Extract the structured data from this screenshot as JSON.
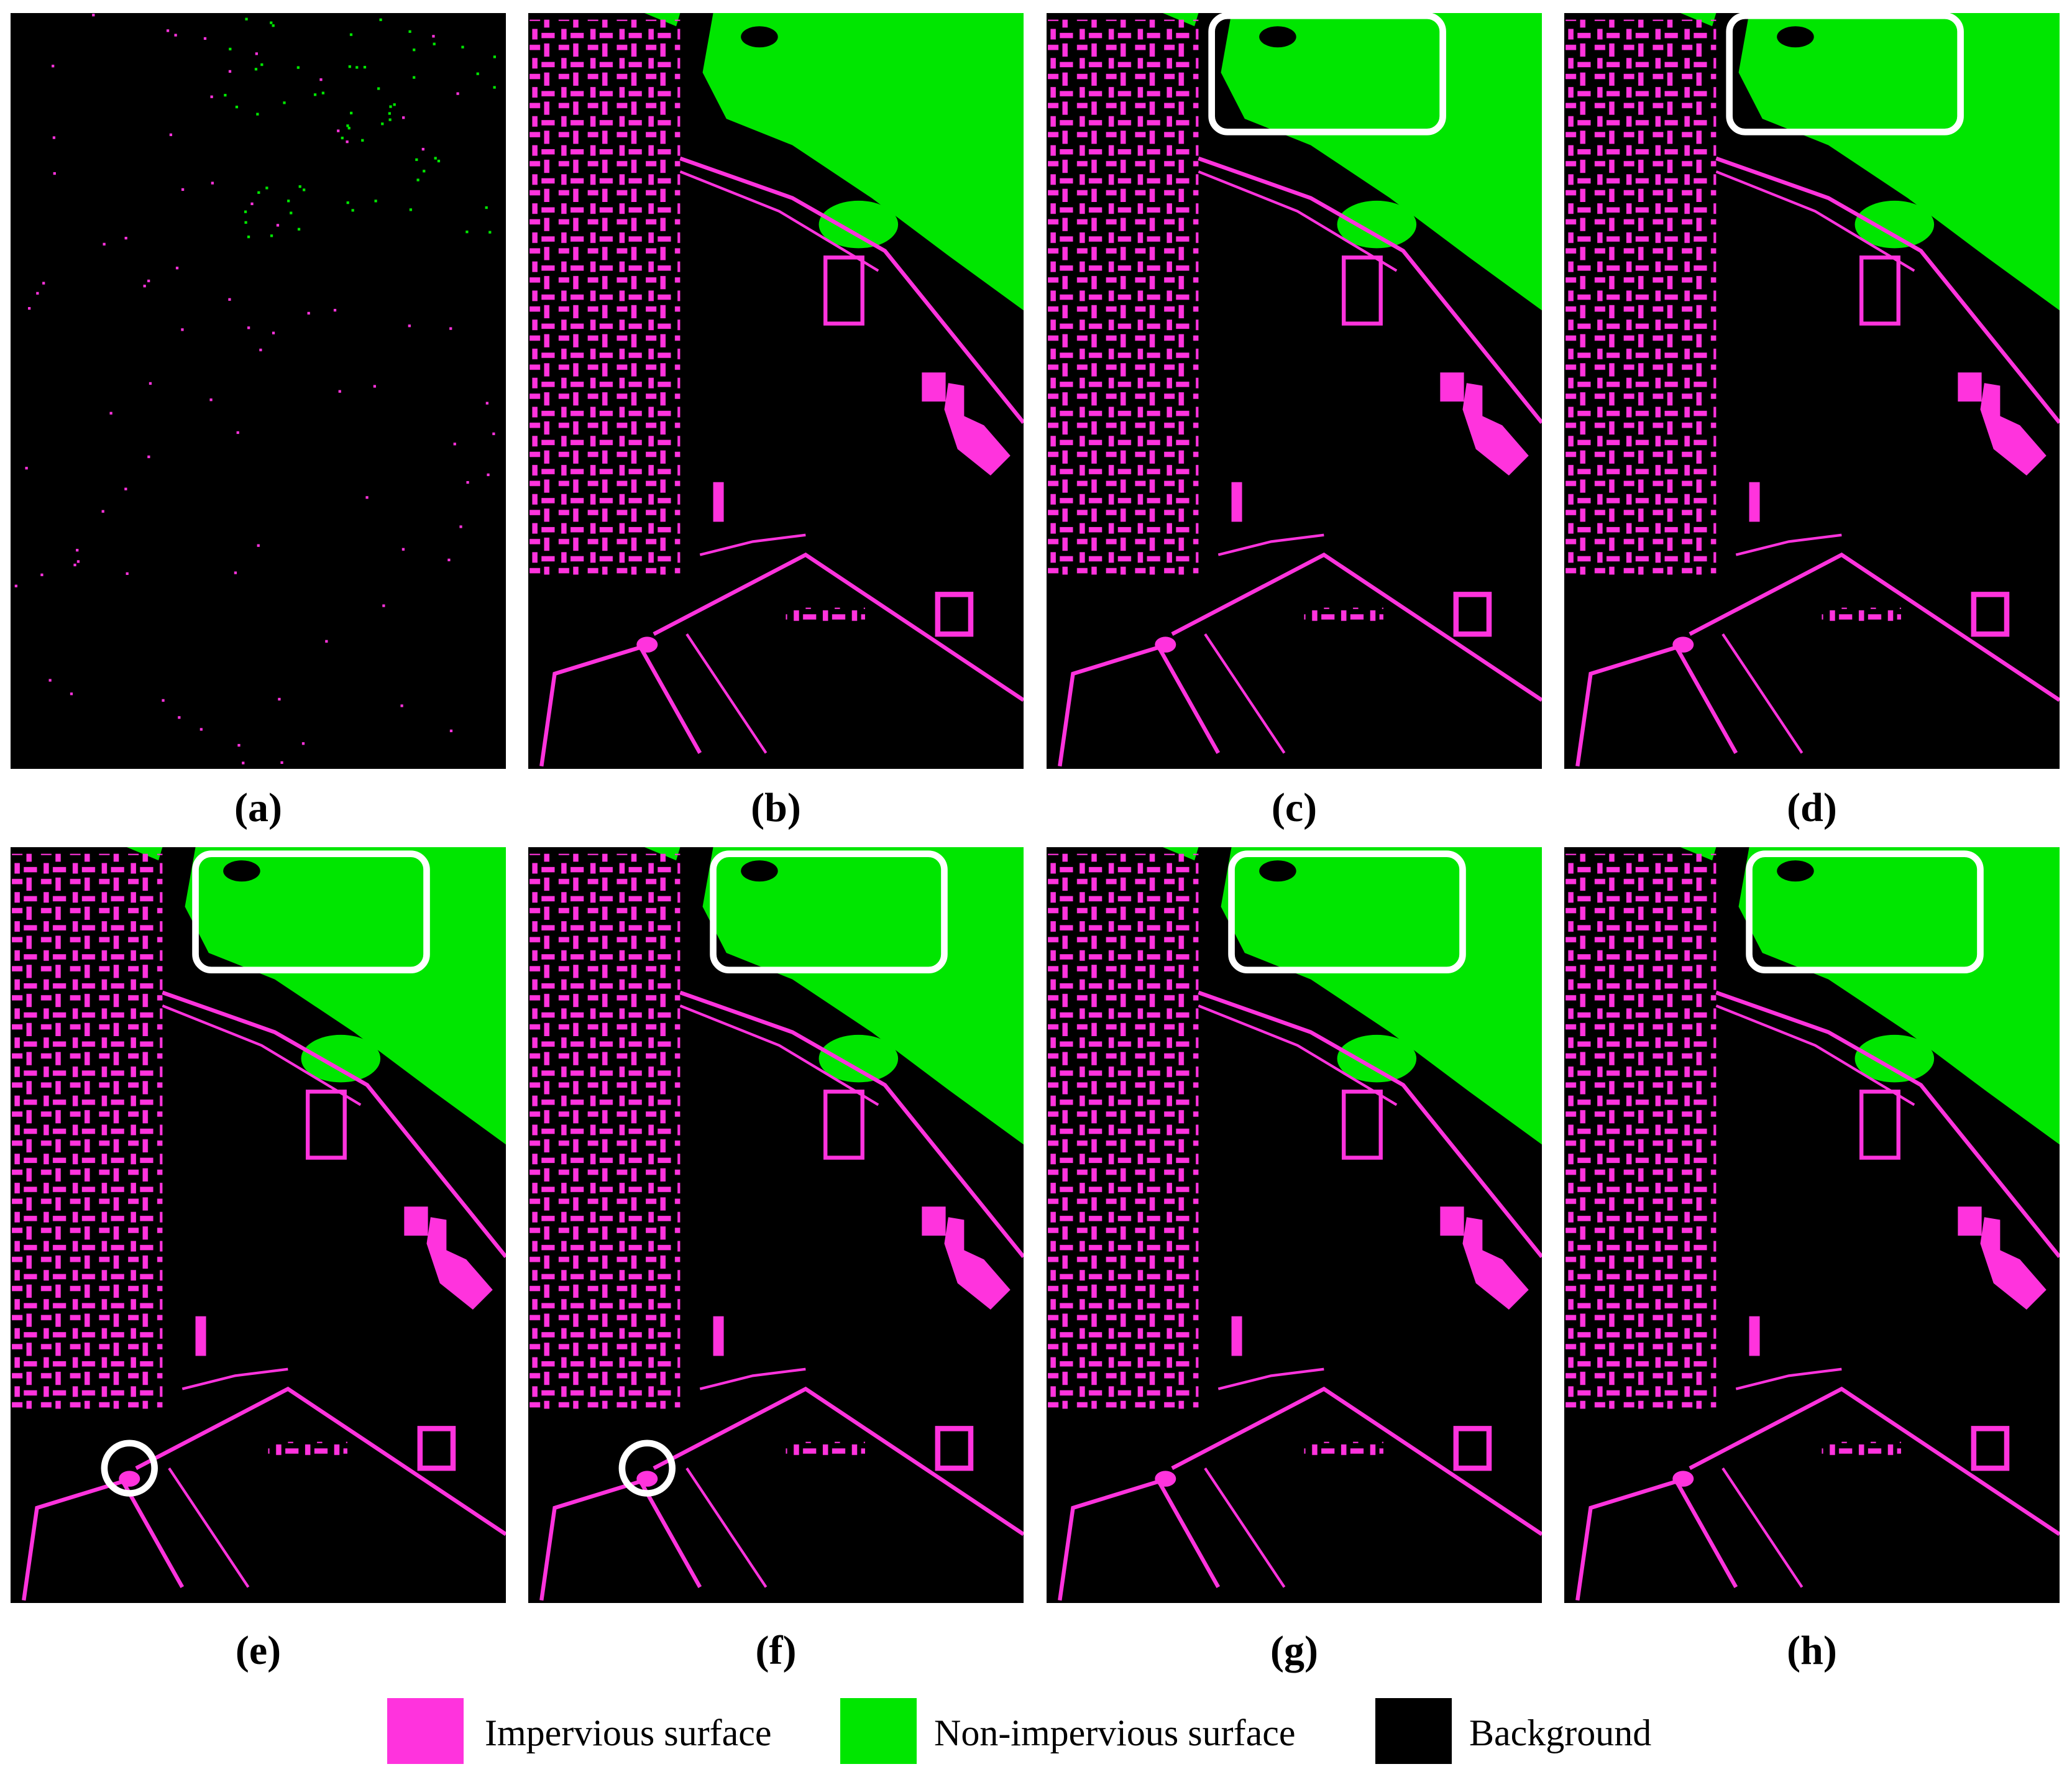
{
  "panels": [
    {
      "label": "(a)"
    },
    {
      "label": "(b)"
    },
    {
      "label": "(c)"
    },
    {
      "label": "(d)"
    },
    {
      "label": "(e)"
    },
    {
      "label": "(f)"
    },
    {
      "label": "(g)"
    },
    {
      "label": "(h)"
    }
  ],
  "legend": [
    {
      "label": "Impervious surface",
      "color": "#ff33dd"
    },
    {
      "label": "Non-impervious surface",
      "color": "#00e600"
    },
    {
      "label": "Background",
      "color": "#000000"
    }
  ]
}
